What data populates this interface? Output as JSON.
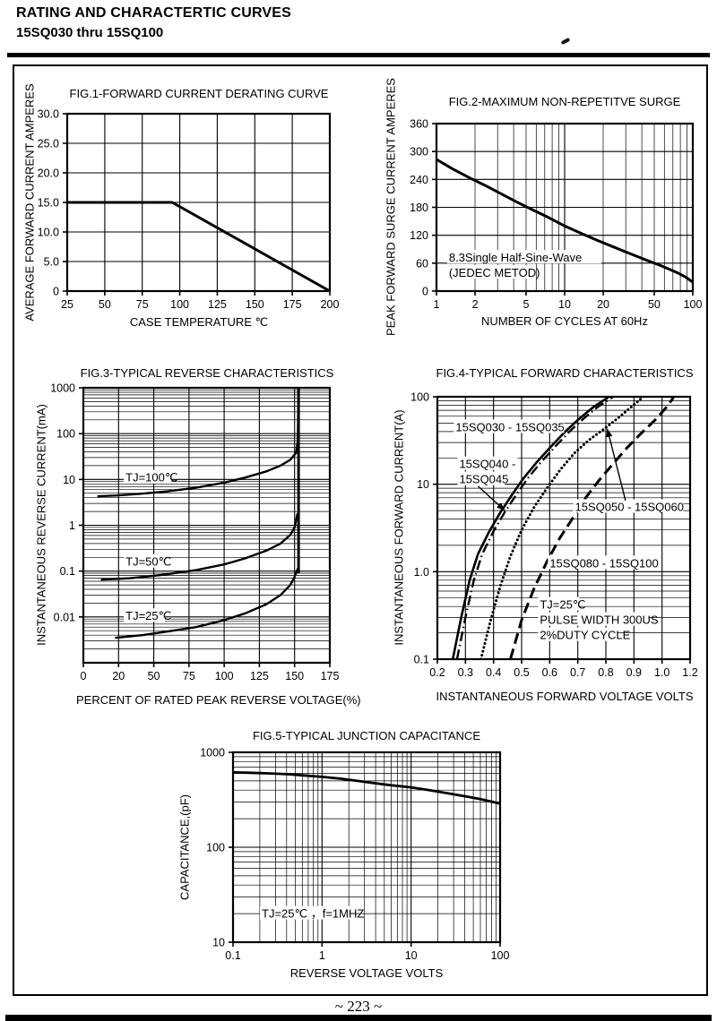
{
  "page": {
    "header_line1": "RATING AND CHARACTERTIC CURVES",
    "header_line2": "15SQ030 thru 15SQ100",
    "footer": "~ 223 ~"
  },
  "chart_data": [
    {
      "id": "fig1",
      "type": "line",
      "title": "FIG.1-FORWARD CURRENT DERATING CURVE",
      "xlabel": "CASE TEMPERATURE ℃",
      "ylabel": "AVERAGE FORWARD CURRENT AMPERES",
      "x_axis": {
        "scale": "linear",
        "ticks": [
          25,
          50,
          75,
          100,
          125,
          150,
          175,
          200
        ],
        "labels": [
          "25",
          "50",
          "75",
          "100",
          "125",
          "150",
          "175",
          "200"
        ]
      },
      "y_axis": {
        "scale": "linear",
        "ticks": [
          0,
          5,
          10,
          15,
          20,
          25,
          30
        ],
        "labels": [
          "0",
          "5.0",
          "10.0",
          "15.0",
          "20.0",
          "25.0",
          "30.0"
        ]
      },
      "series": [
        {
          "name": "derating-curve",
          "style": "solid",
          "width": 3,
          "points": [
            [
              25,
              15
            ],
            [
              95,
              15
            ],
            [
              200,
              0
            ]
          ]
        }
      ],
      "annotations": [],
      "arrows": []
    },
    {
      "id": "fig2",
      "type": "line",
      "title": "FIG.2-MAXIMUM NON-REPETITVE SURGE",
      "xlabel": "NUMBER OF CYCLES AT 60Hz",
      "ylabel": "PEAK FORWARD  SURGE CURRENT AMPERES",
      "x_axis": {
        "scale": "log",
        "range": [
          1,
          100
        ],
        "ticks": [
          1,
          2,
          5,
          10,
          20,
          50,
          100
        ],
        "labels": [
          "1",
          "2",
          "5",
          "10",
          "20",
          "50",
          "100"
        ]
      },
      "y_axis": {
        "scale": "linear",
        "ticks": [
          0,
          60,
          120,
          180,
          240,
          300,
          360
        ],
        "labels": [
          "0",
          "60",
          "120",
          "180",
          "240",
          "300",
          "360"
        ]
      },
      "series": [
        {
          "name": "surge-current-curve",
          "style": "solid",
          "width": 3,
          "points": [
            [
              1,
              283
            ],
            [
              1.35,
              262
            ],
            [
              1.8,
              244
            ],
            [
              2.4,
              227
            ],
            [
              3.2,
              209
            ],
            [
              4.2,
              192
            ],
            [
              5.5,
              176
            ],
            [
              7.5,
              158
            ],
            [
              10,
              140
            ],
            [
              13.5,
              124
            ],
            [
              18,
              109
            ],
            [
              24,
              95
            ],
            [
              32,
              81
            ],
            [
              43,
              67
            ],
            [
              57,
              54
            ],
            [
              75,
              40
            ],
            [
              88,
              30
            ],
            [
              100,
              19
            ]
          ]
        }
      ],
      "annotations": [
        {
          "lines": [
            "8.3Single Half-Sine-Wave",
            "(JEDEC METOD)"
          ],
          "x": 1.25,
          "y": 72
        }
      ],
      "arrows": []
    },
    {
      "id": "fig3",
      "type": "line",
      "title": "FIG.3-TYPICAL REVERSE CHARACTERISTICS",
      "xlabel": "PERCENT OF RATED PEAK REVERSE VOLTAGE(%)",
      "ylabel": "INSTANTANEOUS REVERSE CURRENT(mA)",
      "x_axis": {
        "scale": "linear",
        "ticks": [
          0,
          20,
          50,
          75,
          100,
          125,
          150,
          175
        ],
        "labels": [
          "0",
          "20",
          "50",
          "75",
          "100",
          "125",
          "150",
          "175"
        ]
      },
      "y_axis": {
        "scale": "log",
        "range": [
          0.001,
          1000
        ],
        "ticks": [
          0.01,
          0.1,
          1,
          10,
          100,
          1000
        ],
        "labels": [
          "0.01",
          "0.1",
          "1",
          "10",
          "100",
          "1000"
        ]
      },
      "series": [
        {
          "name": "tj-100-curve",
          "style": "solid",
          "width": 2.4,
          "points": [
            [
              8,
              4.3
            ],
            [
              20,
              4.5
            ],
            [
              40,
              4.9
            ],
            [
              60,
              5.5
            ],
            [
              80,
              6.6
            ],
            [
              100,
              8.5
            ],
            [
              115,
              11
            ],
            [
              130,
              15
            ],
            [
              140,
              20
            ],
            [
              147,
              27
            ],
            [
              151,
              38
            ],
            [
              152.3,
              70
            ],
            [
              152.7,
              1000
            ]
          ]
        },
        {
          "name": "tj-50-curve",
          "style": "solid",
          "width": 2.4,
          "points": [
            [
              10,
              0.065
            ],
            [
              30,
              0.07
            ],
            [
              55,
              0.082
            ],
            [
              80,
              0.105
            ],
            [
              100,
              0.14
            ],
            [
              115,
              0.19
            ],
            [
              130,
              0.28
            ],
            [
              140,
              0.4
            ],
            [
              147,
              0.62
            ],
            [
              150,
              0.9
            ],
            [
              152,
              1.8
            ]
          ]
        },
        {
          "name": "tj-25-curve",
          "style": "solid",
          "width": 2.4,
          "points": [
            [
              18,
              0.0035
            ],
            [
              40,
              0.004
            ],
            [
              60,
              0.0048
            ],
            [
              80,
              0.006
            ],
            [
              100,
              0.0085
            ],
            [
              115,
              0.012
            ],
            [
              130,
              0.019
            ],
            [
              140,
              0.03
            ],
            [
              147,
              0.05
            ],
            [
              150,
              0.075
            ],
            [
              152.3,
              0.115
            ]
          ]
        },
        {
          "name": "breakdown-line",
          "style": "solid",
          "width": 3,
          "points": [
            [
              152.8,
              0.09
            ],
            [
              152.8,
              1000
            ]
          ]
        }
      ],
      "annotations": [
        {
          "text": "TJ=100℃",
          "x": 26,
          "y": 11
        },
        {
          "text": "TJ=50℃",
          "x": 26,
          "y": 0.16
        },
        {
          "text": "TJ=25℃",
          "x": 26,
          "y": 0.0105
        }
      ],
      "arrows": []
    },
    {
      "id": "fig4",
      "type": "line",
      "title": "FIG.4-TYPICAL FORWARD CHARACTERISTICS",
      "xlabel": "INSTANTANEOUS FORWARD VOLTAGE VOLTS",
      "ylabel": "INSTANTANEOUS FORWARD CURRENT(A)",
      "x_axis": {
        "scale": "linear",
        "ticks": [
          0.2,
          0.3,
          0.4,
          0.5,
          0.6,
          0.7,
          0.8,
          0.9,
          1.0,
          1.2
        ],
        "labels": [
          "0.2",
          "0.3",
          "0.4",
          "0.5",
          "0.6",
          "0.7",
          "0.8",
          "0.9",
          "1.0",
          "1.2"
        ]
      },
      "y_axis": {
        "scale": "log",
        "range": [
          0.1,
          100
        ],
        "ticks": [
          0.1,
          1,
          10,
          100
        ],
        "labels": [
          "0.1",
          "1.0",
          "10",
          "100"
        ]
      },
      "series": [
        {
          "name": "curve-15sq030-15sq035",
          "style": "solid",
          "width": 2.6,
          "points": [
            [
              0.255,
              0.1
            ],
            [
              0.285,
              0.3
            ],
            [
              0.315,
              0.8
            ],
            [
              0.345,
              1.6
            ],
            [
              0.385,
              2.9
            ],
            [
              0.425,
              4.8
            ],
            [
              0.465,
              7.5
            ],
            [
              0.505,
              11.5
            ],
            [
              0.555,
              18
            ],
            [
              0.605,
              27
            ],
            [
              0.655,
              40
            ],
            [
              0.705,
              56
            ],
            [
              0.755,
              76
            ],
            [
              0.805,
              97
            ],
            [
              0.825,
              112
            ]
          ]
        },
        {
          "name": "curve-15sq040-15sq045",
          "style": "dashdot",
          "width": 2.4,
          "points": [
            [
              0.27,
              0.1
            ],
            [
              0.3,
              0.3
            ],
            [
              0.33,
              0.8
            ],
            [
              0.36,
              1.6
            ],
            [
              0.4,
              2.9
            ],
            [
              0.44,
              4.8
            ],
            [
              0.48,
              7.5
            ],
            [
              0.52,
              11.5
            ],
            [
              0.57,
              18
            ],
            [
              0.62,
              27
            ],
            [
              0.67,
              40
            ],
            [
              0.72,
              56
            ],
            [
              0.77,
              76
            ],
            [
              0.82,
              97
            ],
            [
              0.845,
              112
            ]
          ]
        },
        {
          "name": "curve-15sq050-15sq060",
          "style": "dotted",
          "width": 3,
          "points": [
            [
              0.355,
              0.1
            ],
            [
              0.39,
              0.28
            ],
            [
              0.425,
              0.7
            ],
            [
              0.46,
              1.5
            ],
            [
              0.5,
              3.0
            ],
            [
              0.545,
              5.5
            ],
            [
              0.59,
              9
            ],
            [
              0.64,
              15
            ],
            [
              0.69,
              23
            ],
            [
              0.74,
              32
            ],
            [
              0.79,
              42
            ],
            [
              0.84,
              56
            ],
            [
              0.89,
              76
            ],
            [
              0.93,
              98
            ],
            [
              0.95,
              112
            ]
          ]
        },
        {
          "name": "curve-15sq080-15sq100",
          "style": "dashed",
          "width": 3,
          "points": [
            [
              0.46,
              0.1
            ],
            [
              0.5,
              0.28
            ],
            [
              0.545,
              0.65
            ],
            [
              0.59,
              1.3
            ],
            [
              0.635,
              2.4
            ],
            [
              0.68,
              4.0
            ],
            [
              0.725,
              6.8
            ],
            [
              0.775,
              11
            ],
            [
              0.825,
              17
            ],
            [
              0.875,
              26
            ],
            [
              0.925,
              38
            ],
            [
              0.975,
              54
            ],
            [
              1.02,
              72
            ],
            [
              1.07,
              92
            ],
            [
              1.1,
              112
            ]
          ]
        }
      ],
      "annotations": [
        {
          "text": "15SQ030 - 15SQ035",
          "x": 0.265,
          "y": 45
        },
        {
          "lines": [
            "15SQ040 -",
            "15SQ045"
          ],
          "x": 0.278,
          "y": 17
        },
        {
          "text": "15SQ050 - 15SQ060",
          "x": 0.69,
          "y": 5.5
        },
        {
          "text": "15SQ080 - 15SQ100",
          "x": 0.6,
          "y": 1.25
        },
        {
          "lines": [
            "TJ=25℃",
            "PULSE WIDTH 300US",
            "2%DUTY CYCLE"
          ],
          "x": 0.565,
          "y": 0.42
        }
      ],
      "arrows": [
        {
          "from": [
            0.345,
            9.5
          ],
          "to": [
            0.44,
            5.0
          ]
        },
        {
          "from": [
            0.87,
            6.5
          ],
          "to": [
            0.805,
            43
          ]
        }
      ]
    },
    {
      "id": "fig5",
      "type": "line",
      "title": "FIG.5-TYPICAL JUNCTION CAPACITANCE",
      "xlabel": "REVERSE VOLTAGE VOLTS",
      "ylabel": "CAPACITANCE,(pF)",
      "x_axis": {
        "scale": "log",
        "range": [
          0.1,
          100
        ],
        "ticks": [
          0.1,
          1,
          10,
          100
        ],
        "labels": [
          "0.1",
          "1",
          "10",
          "100"
        ]
      },
      "y_axis": {
        "scale": "log",
        "range": [
          10,
          1000
        ],
        "ticks": [
          10,
          100,
          1000
        ],
        "labels": [
          "10",
          "100",
          "1000"
        ]
      },
      "series": [
        {
          "name": "capacitance-curve",
          "style": "solid",
          "width": 2.8,
          "points": [
            [
              0.1,
              615
            ],
            [
              0.15,
              610
            ],
            [
              0.25,
              600
            ],
            [
              0.4,
              588
            ],
            [
              0.6,
              572
            ],
            [
              1,
              552
            ],
            [
              1.6,
              528
            ],
            [
              2.5,
              500
            ],
            [
              4,
              472
            ],
            [
              6,
              450
            ],
            [
              10,
              428
            ],
            [
              16,
              400
            ],
            [
              25,
              372
            ],
            [
              40,
              345
            ],
            [
              60,
              322
            ],
            [
              100,
              288
            ]
          ]
        }
      ],
      "annotations": [
        {
          "text": "TJ=25℃ ，f=1MHZ",
          "x": 0.21,
          "y": 20
        }
      ],
      "arrows": []
    }
  ]
}
